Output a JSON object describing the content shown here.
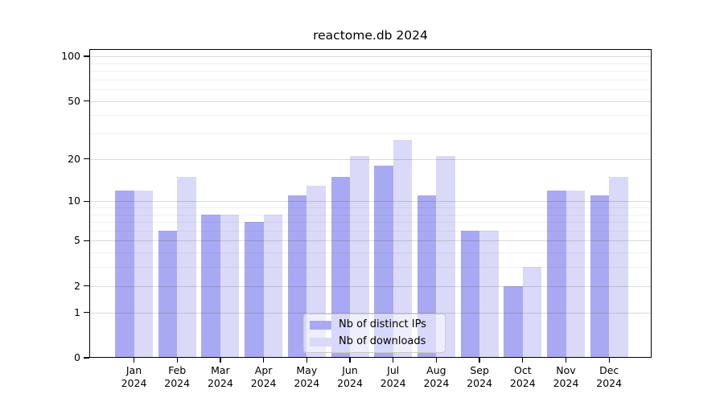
{
  "title": "reactome.db 2024",
  "colors": {
    "distinct_ips_bar": "#a9a9f3",
    "downloads_bar": "#dadaf8"
  },
  "chart_data": {
    "type": "bar",
    "title": "reactome.db 2024",
    "categories": [
      "Jan 2024",
      "Feb 2024",
      "Mar 2024",
      "Apr 2024",
      "May 2024",
      "Jun 2024",
      "Jul 2024",
      "Aug 2024",
      "Sep 2024",
      "Oct 2024",
      "Nov 2024",
      "Dec 2024"
    ],
    "series": [
      {
        "name": "Nb of distinct IPs",
        "color": "#a9a9f3",
        "values": [
          12,
          6,
          8,
          7,
          11,
          15,
          18,
          11,
          6,
          2,
          12,
          11
        ]
      },
      {
        "name": "Nb of downloads",
        "color": "#dadaf8",
        "values": [
          12,
          15,
          8,
          8,
          13,
          21,
          27,
          21,
          6,
          3,
          12,
          15
        ]
      }
    ],
    "xlabel": "",
    "ylabel": "",
    "y_scale": "log1p",
    "ylim": [
      0,
      112
    ],
    "y_ticks": [
      0,
      1,
      2,
      5,
      10,
      20,
      50,
      100
    ],
    "y_minor_gridlines": [
      3,
      4,
      6,
      7,
      8,
      9,
      30,
      40,
      60,
      70,
      80,
      90
    ],
    "grid": true,
    "legend_position": "bottom-center"
  },
  "legend": {
    "items": [
      "Nb of distinct IPs",
      "Nb of downloads"
    ]
  }
}
